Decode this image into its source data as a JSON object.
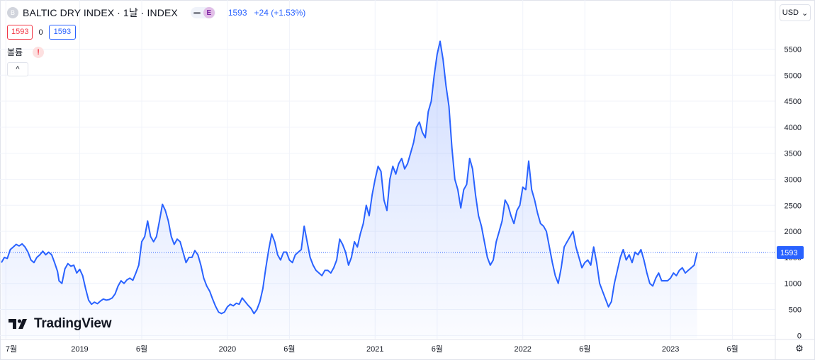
{
  "header": {
    "symbol_badge": "B",
    "title": "BALTIC DRY INDEX · 1날 · INDEX",
    "pill_label": "E",
    "price": "1593",
    "change": "+24 (+1.53%)",
    "currency": "USD",
    "currency_caret": "⌄"
  },
  "ohlc": {
    "low_box": "1593",
    "mid_value": "0",
    "high_box": "1593"
  },
  "volume": {
    "label": "볼륨",
    "warning": "!"
  },
  "collapse_label": "^",
  "logo_text": "TradingView",
  "settings_icon": "gear-icon",
  "colors": {
    "line": "#2962ff",
    "last_label_bg": "#2962ff",
    "grid": "#f0f3fa"
  },
  "chart_data": {
    "type": "area",
    "x_ticks": [
      {
        "label": "7월",
        "x": 2018.5
      },
      {
        "label": "2019",
        "x": 2019.0
      },
      {
        "label": "6월",
        "x": 2019.42
      },
      {
        "label": "2020",
        "x": 2020.0
      },
      {
        "label": "6월",
        "x": 2020.42
      },
      {
        "label": "2021",
        "x": 2021.0
      },
      {
        "label": "6월",
        "x": 2021.42
      },
      {
        "label": "2022",
        "x": 2022.0
      },
      {
        "label": "6월",
        "x": 2022.42
      },
      {
        "label": "2023",
        "x": 2023.0
      },
      {
        "label": "6월",
        "x": 2023.42
      }
    ],
    "y_ticks": [
      0,
      500,
      1000,
      1500,
      2000,
      2500,
      3000,
      3500,
      4000,
      4500,
      5000,
      5500
    ],
    "ylim": [
      -50,
      5900
    ],
    "xlim": [
      2018.47,
      2023.7
    ],
    "last_value": "1593",
    "series": [
      {
        "points": [
          [
            2018.47,
            1400
          ],
          [
            2018.49,
            1500
          ],
          [
            2018.51,
            1480
          ],
          [
            2018.53,
            1650
          ],
          [
            2018.55,
            1700
          ],
          [
            2018.57,
            1750
          ],
          [
            2018.59,
            1720
          ],
          [
            2018.61,
            1760
          ],
          [
            2018.63,
            1700
          ],
          [
            2018.65,
            1600
          ],
          [
            2018.67,
            1450
          ],
          [
            2018.69,
            1400
          ],
          [
            2018.71,
            1500
          ],
          [
            2018.73,
            1550
          ],
          [
            2018.75,
            1620
          ],
          [
            2018.77,
            1550
          ],
          [
            2018.79,
            1600
          ],
          [
            2018.81,
            1550
          ],
          [
            2018.83,
            1400
          ],
          [
            2018.85,
            1230
          ],
          [
            2018.86,
            1050
          ],
          [
            2018.88,
            1000
          ],
          [
            2018.9,
            1280
          ],
          [
            2018.92,
            1380
          ],
          [
            2018.94,
            1330
          ],
          [
            2018.96,
            1350
          ],
          [
            2018.98,
            1200
          ],
          [
            2019.0,
            1270
          ],
          [
            2019.02,
            1150
          ],
          [
            2019.04,
            900
          ],
          [
            2019.06,
            680
          ],
          [
            2019.08,
            600
          ],
          [
            2019.1,
            640
          ],
          [
            2019.12,
            610
          ],
          [
            2019.14,
            660
          ],
          [
            2019.16,
            700
          ],
          [
            2019.18,
            680
          ],
          [
            2019.2,
            690
          ],
          [
            2019.22,
            720
          ],
          [
            2019.24,
            800
          ],
          [
            2019.26,
            950
          ],
          [
            2019.28,
            1050
          ],
          [
            2019.3,
            1000
          ],
          [
            2019.32,
            1070
          ],
          [
            2019.34,
            1100
          ],
          [
            2019.36,
            1060
          ],
          [
            2019.38,
            1200
          ],
          [
            2019.4,
            1350
          ],
          [
            2019.42,
            1800
          ],
          [
            2019.44,
            1900
          ],
          [
            2019.46,
            2200
          ],
          [
            2019.48,
            1900
          ],
          [
            2019.5,
            1800
          ],
          [
            2019.52,
            1900
          ],
          [
            2019.54,
            2200
          ],
          [
            2019.56,
            2520
          ],
          [
            2019.58,
            2400
          ],
          [
            2019.6,
            2200
          ],
          [
            2019.62,
            1900
          ],
          [
            2019.64,
            1750
          ],
          [
            2019.66,
            1850
          ],
          [
            2019.68,
            1800
          ],
          [
            2019.7,
            1600
          ],
          [
            2019.72,
            1400
          ],
          [
            2019.74,
            1500
          ],
          [
            2019.76,
            1500
          ],
          [
            2019.78,
            1630
          ],
          [
            2019.8,
            1550
          ],
          [
            2019.82,
            1350
          ],
          [
            2019.84,
            1100
          ],
          [
            2019.86,
            950
          ],
          [
            2019.88,
            850
          ],
          [
            2019.9,
            700
          ],
          [
            2019.92,
            560
          ],
          [
            2019.94,
            450
          ],
          [
            2019.96,
            420
          ],
          [
            2019.98,
            450
          ],
          [
            2020.0,
            550
          ],
          [
            2020.02,
            600
          ],
          [
            2020.04,
            570
          ],
          [
            2020.06,
            620
          ],
          [
            2020.08,
            600
          ],
          [
            2020.1,
            720
          ],
          [
            2020.12,
            650
          ],
          [
            2020.14,
            580
          ],
          [
            2020.16,
            520
          ],
          [
            2020.18,
            420
          ],
          [
            2020.2,
            500
          ],
          [
            2020.22,
            650
          ],
          [
            2020.24,
            900
          ],
          [
            2020.26,
            1300
          ],
          [
            2020.28,
            1650
          ],
          [
            2020.3,
            1950
          ],
          [
            2020.32,
            1800
          ],
          [
            2020.34,
            1550
          ],
          [
            2020.36,
            1450
          ],
          [
            2020.38,
            1600
          ],
          [
            2020.4,
            1600
          ],
          [
            2020.42,
            1450
          ],
          [
            2020.44,
            1400
          ],
          [
            2020.46,
            1550
          ],
          [
            2020.48,
            1600
          ],
          [
            2020.5,
            1650
          ],
          [
            2020.52,
            2100
          ],
          [
            2020.54,
            1800
          ],
          [
            2020.56,
            1500
          ],
          [
            2020.58,
            1350
          ],
          [
            2020.6,
            1250
          ],
          [
            2020.62,
            1200
          ],
          [
            2020.64,
            1150
          ],
          [
            2020.66,
            1250
          ],
          [
            2020.68,
            1250
          ],
          [
            2020.7,
            1200
          ],
          [
            2020.72,
            1300
          ],
          [
            2020.74,
            1450
          ],
          [
            2020.76,
            1850
          ],
          [
            2020.78,
            1750
          ],
          [
            2020.8,
            1600
          ],
          [
            2020.82,
            1350
          ],
          [
            2020.84,
            1500
          ],
          [
            2020.86,
            1800
          ],
          [
            2020.88,
            1700
          ],
          [
            2020.9,
            1950
          ],
          [
            2020.92,
            2150
          ],
          [
            2020.94,
            2500
          ],
          [
            2020.96,
            2300
          ],
          [
            2020.98,
            2700
          ],
          [
            2021.0,
            3000
          ],
          [
            2021.02,
            3250
          ],
          [
            2021.04,
            3150
          ],
          [
            2021.06,
            2600
          ],
          [
            2021.08,
            2400
          ],
          [
            2021.1,
            3000
          ],
          [
            2021.12,
            3250
          ],
          [
            2021.14,
            3100
          ],
          [
            2021.16,
            3300
          ],
          [
            2021.18,
            3400
          ],
          [
            2021.2,
            3200
          ],
          [
            2021.22,
            3300
          ],
          [
            2021.24,
            3500
          ],
          [
            2021.26,
            3700
          ],
          [
            2021.28,
            4000
          ],
          [
            2021.3,
            4100
          ],
          [
            2021.32,
            3900
          ],
          [
            2021.34,
            3800
          ],
          [
            2021.36,
            4300
          ],
          [
            2021.38,
            4500
          ],
          [
            2021.4,
            5000
          ],
          [
            2021.42,
            5400
          ],
          [
            2021.44,
            5650
          ],
          [
            2021.46,
            5300
          ],
          [
            2021.48,
            4800
          ],
          [
            2021.5,
            4400
          ],
          [
            2021.52,
            3600
          ],
          [
            2021.54,
            3000
          ],
          [
            2021.56,
            2800
          ],
          [
            2021.58,
            2450
          ],
          [
            2021.6,
            2800
          ],
          [
            2021.62,
            2900
          ],
          [
            2021.64,
            3400
          ],
          [
            2021.66,
            3200
          ],
          [
            2021.68,
            2700
          ],
          [
            2021.7,
            2300
          ],
          [
            2021.72,
            2100
          ],
          [
            2021.74,
            1800
          ],
          [
            2021.76,
            1500
          ],
          [
            2021.78,
            1350
          ],
          [
            2021.8,
            1450
          ],
          [
            2021.82,
            1800
          ],
          [
            2021.84,
            2000
          ],
          [
            2021.86,
            2200
          ],
          [
            2021.88,
            2600
          ],
          [
            2021.9,
            2500
          ],
          [
            2021.92,
            2300
          ],
          [
            2021.94,
            2150
          ],
          [
            2021.96,
            2400
          ],
          [
            2021.98,
            2500
          ],
          [
            2022.0,
            2850
          ],
          [
            2022.02,
            2800
          ],
          [
            2022.04,
            3350
          ],
          [
            2022.06,
            2800
          ],
          [
            2022.08,
            2600
          ],
          [
            2022.1,
            2350
          ],
          [
            2022.12,
            2150
          ],
          [
            2022.14,
            2100
          ],
          [
            2022.16,
            2000
          ],
          [
            2022.18,
            1700
          ],
          [
            2022.2,
            1400
          ],
          [
            2022.22,
            1150
          ],
          [
            2022.24,
            1000
          ],
          [
            2022.26,
            1300
          ],
          [
            2022.28,
            1700
          ],
          [
            2022.3,
            1800
          ],
          [
            2022.32,
            1900
          ],
          [
            2022.34,
            2000
          ],
          [
            2022.36,
            1700
          ],
          [
            2022.38,
            1500
          ],
          [
            2022.4,
            1300
          ],
          [
            2022.42,
            1400
          ],
          [
            2022.44,
            1450
          ],
          [
            2022.46,
            1350
          ],
          [
            2022.48,
            1700
          ],
          [
            2022.5,
            1400
          ],
          [
            2022.52,
            1000
          ],
          [
            2022.54,
            850
          ],
          [
            2022.56,
            700
          ],
          [
            2022.58,
            550
          ],
          [
            2022.6,
            650
          ],
          [
            2022.62,
            1000
          ],
          [
            2022.64,
            1250
          ],
          [
            2022.66,
            1500
          ],
          [
            2022.68,
            1650
          ],
          [
            2022.7,
            1450
          ],
          [
            2022.72,
            1550
          ],
          [
            2022.74,
            1400
          ],
          [
            2022.76,
            1600
          ],
          [
            2022.78,
            1550
          ],
          [
            2022.8,
            1650
          ],
          [
            2022.82,
            1450
          ],
          [
            2022.84,
            1200
          ],
          [
            2022.86,
            1000
          ],
          [
            2022.88,
            950
          ],
          [
            2022.9,
            1100
          ],
          [
            2022.92,
            1200
          ],
          [
            2022.94,
            1050
          ],
          [
            2022.96,
            1050
          ],
          [
            2022.98,
            1050
          ],
          [
            2023.0,
            1100
          ],
          [
            2023.02,
            1200
          ],
          [
            2023.04,
            1150
          ],
          [
            2023.06,
            1250
          ],
          [
            2023.08,
            1300
          ],
          [
            2023.1,
            1200
          ],
          [
            2023.12,
            1250
          ],
          [
            2023.14,
            1300
          ],
          [
            2023.16,
            1350
          ],
          [
            2023.18,
            1593
          ]
        ]
      }
    ]
  }
}
